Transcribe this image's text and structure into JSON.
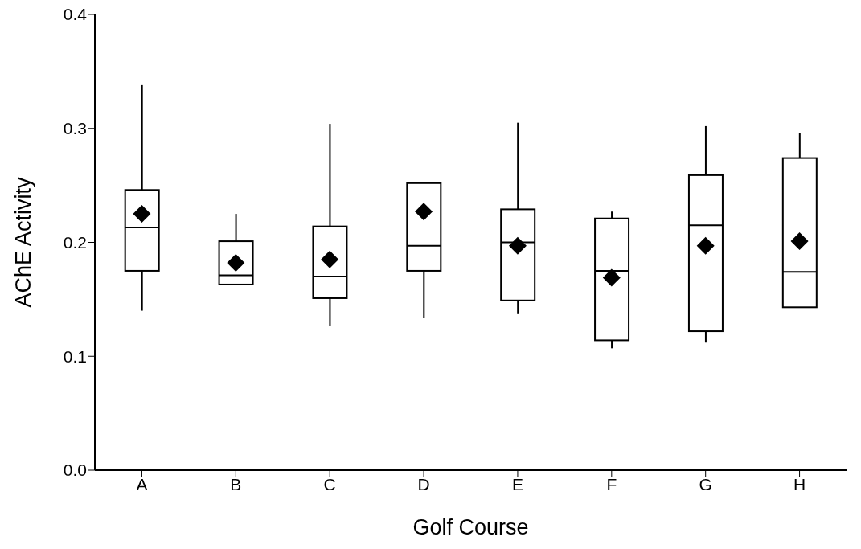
{
  "chart_data": {
    "type": "box",
    "xlabel": "Golf Course",
    "ylabel": "AChE Activity",
    "categories": [
      "A",
      "B",
      "C",
      "D",
      "E",
      "F",
      "G",
      "H"
    ],
    "boxes": [
      {
        "low": 0.14,
        "q1": 0.175,
        "median": 0.213,
        "q3": 0.246,
        "high": 0.338,
        "mean": 0.225
      },
      {
        "low": 0.163,
        "q1": 0.163,
        "median": 0.171,
        "q3": 0.201,
        "high": 0.225,
        "mean": 0.182
      },
      {
        "low": 0.127,
        "q1": 0.151,
        "median": 0.17,
        "q3": 0.214,
        "high": 0.304,
        "mean": 0.185
      },
      {
        "low": 0.134,
        "q1": 0.175,
        "median": 0.197,
        "q3": 0.252,
        "high": 0.252,
        "mean": 0.227
      },
      {
        "low": 0.137,
        "q1": 0.149,
        "median": 0.2,
        "q3": 0.229,
        "high": 0.305,
        "mean": 0.197
      },
      {
        "low": 0.107,
        "q1": 0.114,
        "median": 0.175,
        "q3": 0.221,
        "high": 0.227,
        "mean": 0.169
      },
      {
        "low": 0.112,
        "q1": 0.122,
        "median": 0.215,
        "q3": 0.259,
        "high": 0.302,
        "mean": 0.197
      },
      {
        "low": 0.143,
        "q1": 0.143,
        "median": 0.174,
        "q3": 0.274,
        "high": 0.296,
        "mean": 0.201
      }
    ],
    "color": "#000000",
    "ylim": [
      0,
      0.4
    ],
    "yticks": [
      {
        "value": 0,
        "label": "0.0"
      },
      {
        "value": 0.1,
        "label": "0.1"
      },
      {
        "value": 0.2,
        "label": "0.2"
      },
      {
        "value": 0.3,
        "label": "0.3"
      },
      {
        "value": 0.4,
        "label": "0.4"
      }
    ],
    "grid": false
  }
}
